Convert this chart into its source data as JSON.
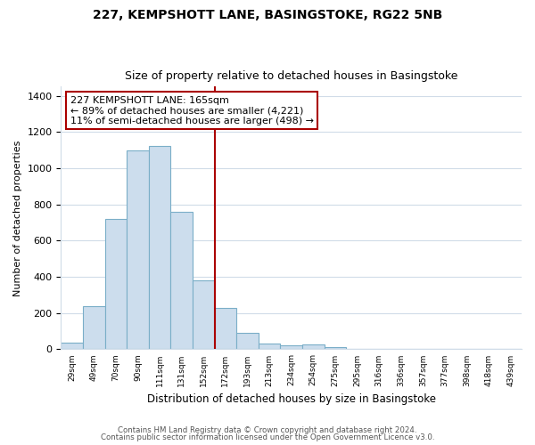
{
  "title1": "227, KEMPSHOTT LANE, BASINGSTOKE, RG22 5NB",
  "title2": "Size of property relative to detached houses in Basingstoke",
  "xlabel": "Distribution of detached houses by size in Basingstoke",
  "ylabel": "Number of detached properties",
  "bar_labels": [
    "29sqm",
    "49sqm",
    "70sqm",
    "90sqm",
    "111sqm",
    "131sqm",
    "152sqm",
    "172sqm",
    "193sqm",
    "213sqm",
    "234sqm",
    "254sqm",
    "275sqm",
    "295sqm",
    "316sqm",
    "336sqm",
    "357sqm",
    "377sqm",
    "398sqm",
    "418sqm",
    "439sqm"
  ],
  "bar_values": [
    35,
    240,
    720,
    1100,
    1120,
    760,
    380,
    230,
    90,
    30,
    20,
    25,
    12,
    0,
    0,
    0,
    0,
    0,
    0,
    0,
    0
  ],
  "bar_color": "#ccdded",
  "bar_edge_color": "#7aaec8",
  "vline_x_idx": 6.5,
  "vline_color": "#aa0000",
  "annotation_line1": "227 KEMPSHOTT LANE: 165sqm",
  "annotation_line2": "← 89% of detached houses are smaller (4,221)",
  "annotation_line3": "11% of semi-detached houses are larger (498) →",
  "box_edge_color": "#aa0000",
  "ylim": [
    0,
    1450
  ],
  "yticks": [
    0,
    200,
    400,
    600,
    800,
    1000,
    1200,
    1400
  ],
  "footnote1": "Contains HM Land Registry data © Crown copyright and database right 2024.",
  "footnote2": "Contains public sector information licensed under the Open Government Licence v3.0.",
  "background_color": "#ffffff",
  "grid_color": "#d0dce8",
  "title_fontsize": 10,
  "subtitle_fontsize": 9
}
